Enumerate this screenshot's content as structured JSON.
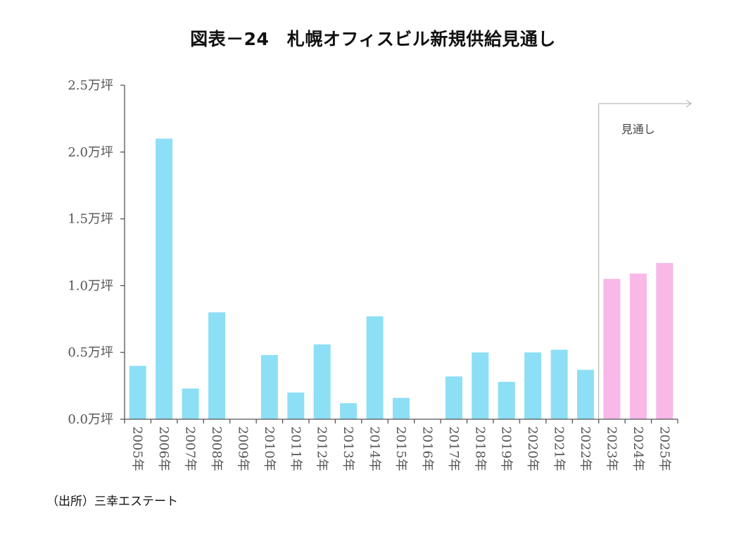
{
  "title": "図表－24　札幌オフィスビル新規供給見通し",
  "source": "（出所）三幸エステート",
  "colors": {
    "actual": "#8ddff5",
    "forecast": "#f8b8e8",
    "axis": "#555555",
    "annotation_line": "#aaaaaa"
  },
  "chart_data": {
    "type": "bar",
    "title": "図表－24　札幌オフィスビル新規供給見通し",
    "xlabel": "",
    "ylabel": "",
    "ylim": [
      0,
      2.5
    ],
    "yticks": [
      0.0,
      0.5,
      1.0,
      1.5,
      2.0,
      2.5
    ],
    "ytick_labels": [
      "0.0万坪",
      "0.5万坪",
      "1.0万坪",
      "1.5万坪",
      "2.0万坪",
      "2.5万坪"
    ],
    "unit": "万坪",
    "grid": false,
    "legend": "none",
    "categories": [
      "2005年",
      "2006年",
      "2007年",
      "2008年",
      "2009年",
      "2010年",
      "2011年",
      "2012年",
      "2013年",
      "2014年",
      "2015年",
      "2016年",
      "2017年",
      "2018年",
      "2019年",
      "2020年",
      "2021年",
      "2022年",
      "2023年",
      "2024年",
      "2025年"
    ],
    "series": [
      {
        "name": "新規供給",
        "values": [
          0.4,
          2.1,
          0.23,
          0.8,
          0.0,
          0.48,
          0.2,
          0.56,
          0.12,
          0.77,
          0.16,
          0.0,
          0.32,
          0.5,
          0.28,
          0.5,
          0.52,
          0.37,
          1.05,
          1.09,
          1.17
        ],
        "forecast": [
          false,
          false,
          false,
          false,
          false,
          false,
          false,
          false,
          false,
          false,
          false,
          false,
          false,
          false,
          false,
          false,
          false,
          false,
          true,
          true,
          true
        ]
      }
    ],
    "annotations": [
      {
        "text": "見通し",
        "starts_at_category": "2023年",
        "type": "bracket-arrow"
      }
    ]
  }
}
